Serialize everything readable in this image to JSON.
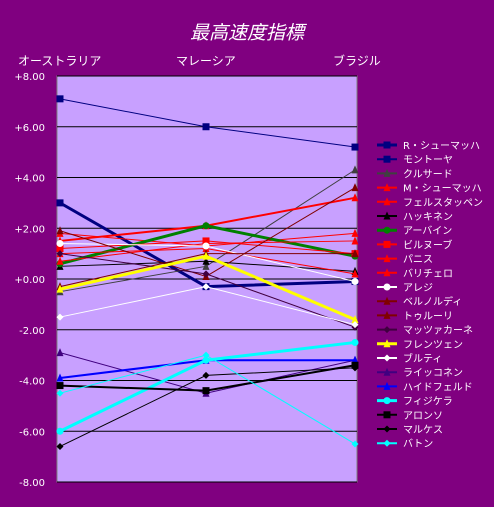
{
  "chart_data": {
    "type": "line",
    "title": "最高速度指標",
    "categories": [
      "オーストラリア",
      "マレーシア",
      "ブラジル"
    ],
    "ylim": [
      -8,
      8
    ],
    "yticks": [
      "+8.00",
      "+6.00",
      "+4.00",
      "+2.00",
      "+0.00",
      "-2.00",
      "-4.00",
      "-6.00",
      "-8.00"
    ],
    "grid": true,
    "legend_position": "right",
    "plot_bg": "#C8A0FF",
    "series": [
      {
        "name": "R・シューマッハ",
        "color": "#000080",
        "marker": "square",
        "width": 3,
        "values": [
          3.0,
          -0.3,
          -0.1
        ]
      },
      {
        "name": "モントーヤ",
        "color": "#000080",
        "marker": "square",
        "width": 1,
        "values": [
          7.1,
          6.0,
          5.2
        ]
      },
      {
        "name": "クルサード",
        "color": "#404040",
        "marker": "triangle",
        "width": 1,
        "values": [
          -0.5,
          0.5,
          4.3
        ]
      },
      {
        "name": "M・シューマッハ",
        "color": "#FF0000",
        "marker": "triangle",
        "width": 2,
        "values": [
          1.5,
          2.1,
          3.2
        ]
      },
      {
        "name": "フェルスタッペン",
        "color": "#FF0000",
        "marker": "triangle",
        "width": 1,
        "values": [
          1.8,
          1.3,
          1.8
        ]
      },
      {
        "name": "ハッキネン",
        "color": "#000000",
        "marker": "triangle",
        "width": 1,
        "values": [
          0.5,
          0.7,
          0.3
        ]
      },
      {
        "name": "アーバイン",
        "color": "#008000",
        "marker": "circle",
        "width": 3,
        "values": [
          0.6,
          2.1,
          0.9
        ]
      },
      {
        "name": "ビルヌーブ",
        "color": "#FF0000",
        "marker": "square",
        "width": 1,
        "values": [
          1.2,
          1.5,
          1.0
        ]
      },
      {
        "name": "パニス",
        "color": "#FF0000",
        "marker": "triangle",
        "width": 1,
        "values": [
          1.0,
          1.2,
          0.2
        ]
      },
      {
        "name": "バリチェロ",
        "color": "#FF0000",
        "marker": "triangle",
        "width": 1,
        "values": [
          0.7,
          1.4,
          1.5
        ]
      },
      {
        "name": "アレジ",
        "color": "#FFFFFF",
        "marker": "circle",
        "width": 1,
        "values": [
          1.4,
          1.3,
          -0.1
        ]
      },
      {
        "name": "ベルノルディ",
        "color": "#800000",
        "marker": "triangle",
        "width": 1,
        "values": [
          1.9,
          0.1,
          3.6
        ]
      },
      {
        "name": "トゥルーリ",
        "color": "#800000",
        "marker": "triangle",
        "width": 1,
        "values": [
          -0.3,
          1.0,
          1.0
        ]
      },
      {
        "name": "マッツァカーネ",
        "color": "#400040",
        "marker": "diamond",
        "width": 1,
        "values": [
          1.0,
          0.2,
          -1.9
        ]
      },
      {
        "name": "フレンツェン",
        "color": "#FFFF00",
        "marker": "triangle",
        "width": 3,
        "values": [
          -0.4,
          0.9,
          -1.6
        ]
      },
      {
        "name": "ブルティ",
        "color": "#FFFFFF",
        "marker": "diamond",
        "width": 1,
        "values": [
          -1.5,
          -0.3,
          -1.8
        ]
      },
      {
        "name": "ライッコネン",
        "color": "#400080",
        "marker": "triangle",
        "width": 1,
        "values": [
          -2.9,
          -4.5,
          -3.2
        ]
      },
      {
        "name": "ハイドフェルド",
        "color": "#0000FF",
        "marker": "triangle",
        "width": 2,
        "values": [
          -3.9,
          -3.2,
          -3.2
        ]
      },
      {
        "name": "フィジケラ",
        "color": "#00FFFF",
        "marker": "circle",
        "width": 3,
        "values": [
          -6.0,
          -3.2,
          -2.5
        ]
      },
      {
        "name": "アロンソ",
        "color": "#000000",
        "marker": "square",
        "width": 2,
        "values": [
          -4.2,
          -4.4,
          -3.4
        ]
      },
      {
        "name": "マルケス",
        "color": "#000000",
        "marker": "diamond",
        "width": 1,
        "values": [
          -6.6,
          -3.8,
          -3.5
        ]
      },
      {
        "name": "バトン",
        "color": "#00FFFF",
        "marker": "diamond",
        "width": 1,
        "values": [
          -4.5,
          -3.0,
          -6.5
        ]
      }
    ]
  }
}
